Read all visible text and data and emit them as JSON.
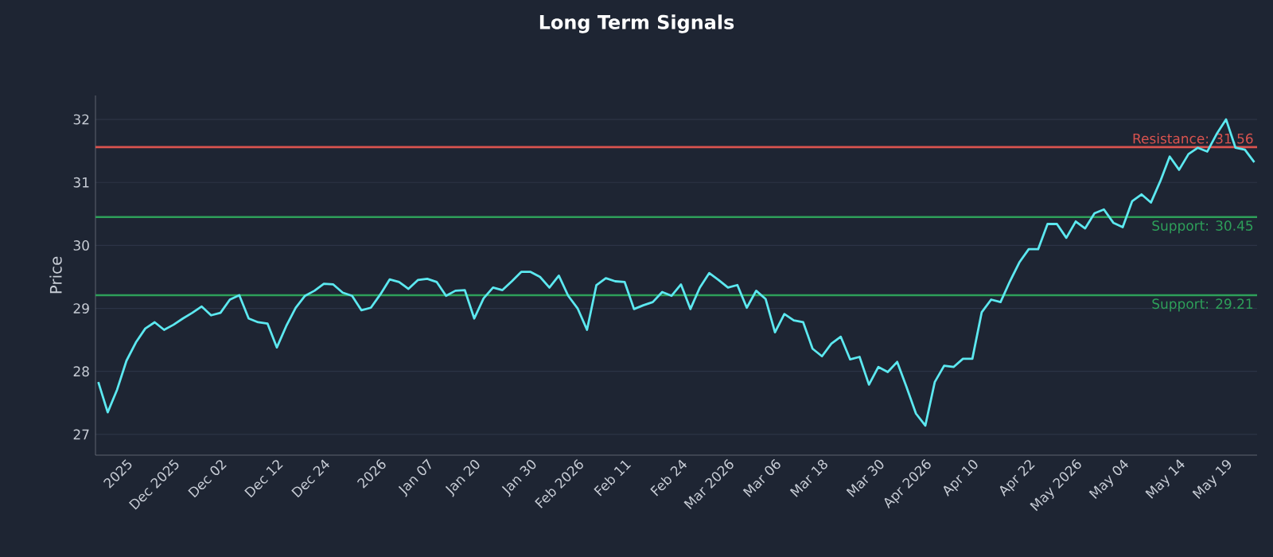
{
  "chart_data": {
    "type": "line",
    "title": "Long Term Signals",
    "ylabel": "Price",
    "categories": [
      null,
      null,
      null,
      "2025",
      null,
      null,
      null,
      null,
      "Dec 2025",
      null,
      null,
      null,
      null,
      "Dec 02",
      null,
      null,
      null,
      null,
      null,
      "Dec 12",
      null,
      null,
      null,
      null,
      "Dec 24",
      null,
      null,
      null,
      null,
      null,
      "2026",
      null,
      null,
      null,
      null,
      "Jan 07",
      null,
      null,
      null,
      null,
      "Jan 20",
      null,
      null,
      null,
      null,
      null,
      "Jan 30",
      null,
      null,
      null,
      null,
      "Feb 2026",
      null,
      null,
      null,
      null,
      "Feb 11",
      null,
      null,
      null,
      null,
      null,
      "Feb 24",
      null,
      null,
      null,
      null,
      "Mar 2026",
      null,
      null,
      null,
      null,
      "Mar 06",
      null,
      null,
      null,
      null,
      "Mar 18",
      null,
      null,
      null,
      null,
      null,
      "Mar 30",
      null,
      null,
      null,
      null,
      "Apr 2026",
      null,
      null,
      null,
      null,
      "Apr 10",
      null,
      null,
      null,
      null,
      null,
      "Apr 22",
      null,
      null,
      null,
      null,
      "May 2026",
      null,
      null,
      null,
      null,
      "May 04",
      null,
      null,
      null,
      null,
      null,
      "May 14",
      null,
      null,
      null,
      null,
      "May 19",
      null,
      null,
      null
    ],
    "series": [
      {
        "color": "#5ce8f0",
        "values": [
          27.83,
          27.35,
          27.71,
          28.17,
          28.46,
          28.68,
          28.78,
          28.66,
          28.74,
          28.84,
          28.93,
          29.03,
          28.89,
          28.93,
          29.14,
          29.21,
          28.84,
          28.78,
          28.76,
          28.38,
          28.72,
          29.01,
          29.2,
          29.28,
          29.39,
          29.38,
          29.25,
          29.2,
          28.97,
          29.01,
          29.22,
          29.46,
          29.42,
          29.31,
          29.45,
          29.47,
          29.42,
          29.2,
          29.28,
          29.29,
          28.84,
          29.16,
          29.33,
          29.29,
          29.43,
          29.58,
          29.58,
          29.5,
          29.33,
          29.52,
          29.2,
          29.0,
          28.66,
          29.37,
          29.48,
          29.43,
          29.42,
          28.99,
          29.05,
          29.1,
          29.26,
          29.2,
          29.38,
          28.99,
          29.33,
          29.56,
          29.45,
          29.33,
          29.37,
          29.01,
          29.28,
          29.15,
          28.62,
          28.91,
          28.81,
          28.78,
          28.36,
          28.24,
          28.44,
          28.55,
          28.19,
          28.23,
          27.79,
          28.07,
          27.99,
          28.15,
          27.75,
          27.33,
          27.14,
          27.83,
          28.09,
          28.07,
          28.2,
          28.2,
          28.94,
          29.14,
          29.1,
          29.43,
          29.73,
          29.94,
          29.94,
          30.34,
          30.34,
          30.12,
          30.38,
          30.27,
          30.51,
          30.57,
          30.36,
          30.29,
          30.7,
          30.81,
          30.68,
          31.02,
          31.41,
          31.2,
          31.45,
          31.55,
          31.49,
          31.77,
          32.0,
          31.55,
          31.52,
          31.32
        ]
      }
    ],
    "ylim": [
      26.67,
      32.38
    ],
    "yticks": [
      27,
      28,
      29,
      30,
      31,
      32
    ],
    "grid": "y",
    "ref_lines": [
      {
        "axis": "y",
        "value": 31.56,
        "label": "Resistance: 31.56",
        "color": "#d9534f"
      },
      {
        "axis": "y",
        "value": 30.45,
        "label": "Support: 30.45",
        "color": "#2ea05a"
      },
      {
        "axis": "y",
        "value": 29.21,
        "label": "Support: 29.21",
        "color": "#2ea05a"
      }
    ]
  }
}
